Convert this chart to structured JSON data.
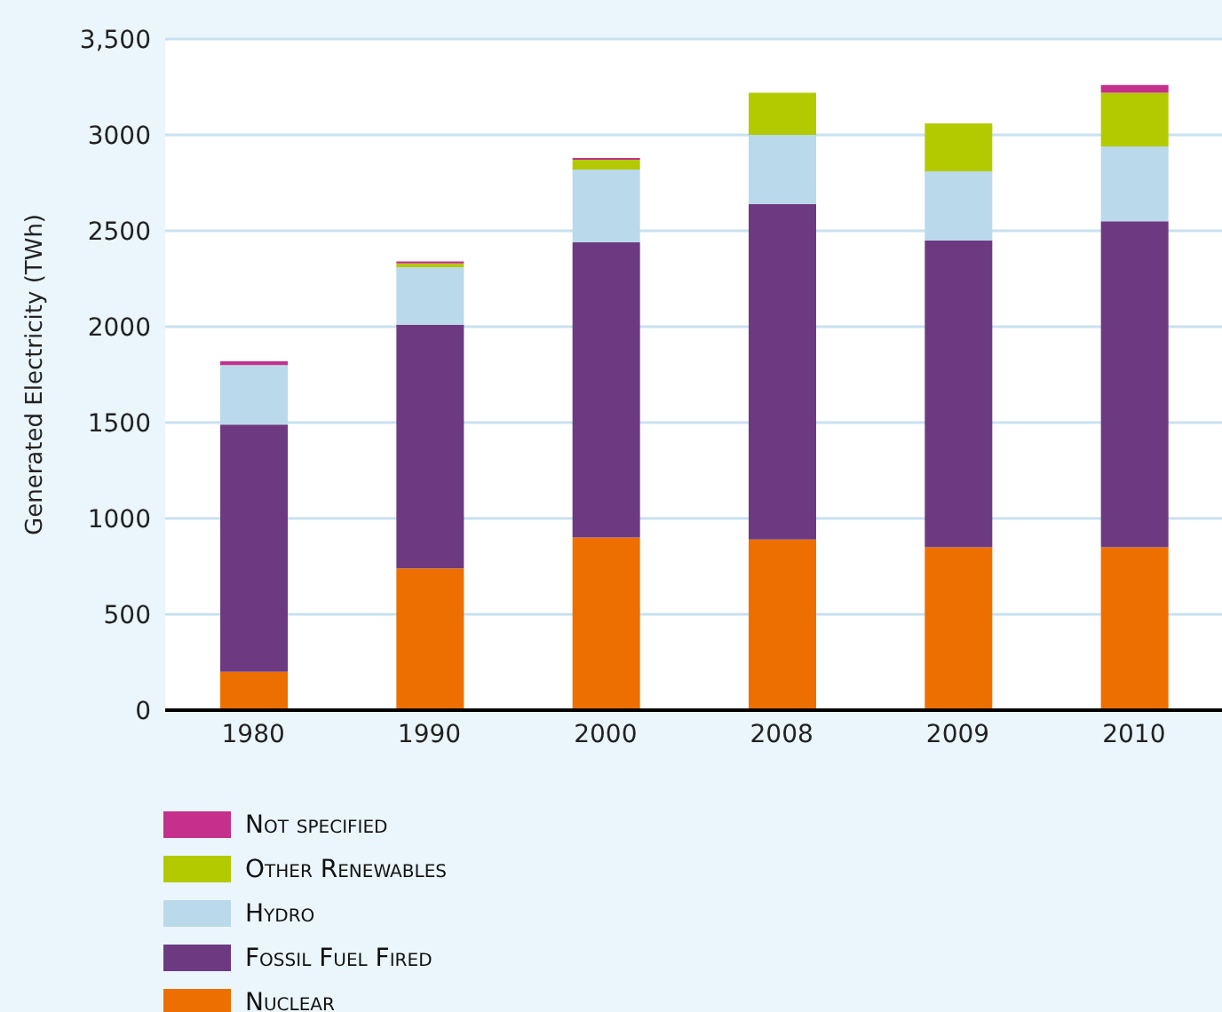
{
  "chart_data": {
    "type": "bar",
    "stacked": true,
    "ylabel": "Generated Electricity (TWh)",
    "categories": [
      "1980",
      "1990",
      "2000",
      "2008",
      "2009",
      "2010"
    ],
    "series": [
      {
        "name": "Nuclear",
        "color": "#ed6f00",
        "values": [
          200,
          740,
          900,
          890,
          850,
          850
        ]
      },
      {
        "name": "Fossil Fuel Fired",
        "color": "#6d3a82",
        "values": [
          1290,
          1270,
          1540,
          1750,
          1600,
          1700
        ]
      },
      {
        "name": "Hydro",
        "color": "#bad9ea",
        "values": [
          310,
          300,
          380,
          360,
          360,
          390
        ]
      },
      {
        "name": "Other Renewables",
        "color": "#b3ca00",
        "values": [
          0,
          20,
          50,
          220,
          250,
          280
        ]
      },
      {
        "name": "Not specified",
        "color": "#c4308c",
        "values": [
          20,
          10,
          10,
          0,
          0,
          40
        ]
      }
    ],
    "ylim": [
      0,
      3500
    ],
    "yticks": [
      0,
      500,
      1000,
      1500,
      2000,
      2500,
      3000,
      {
        "value": 3500,
        "label": "3,500"
      }
    ],
    "grid": "y",
    "legend": "bottom"
  }
}
